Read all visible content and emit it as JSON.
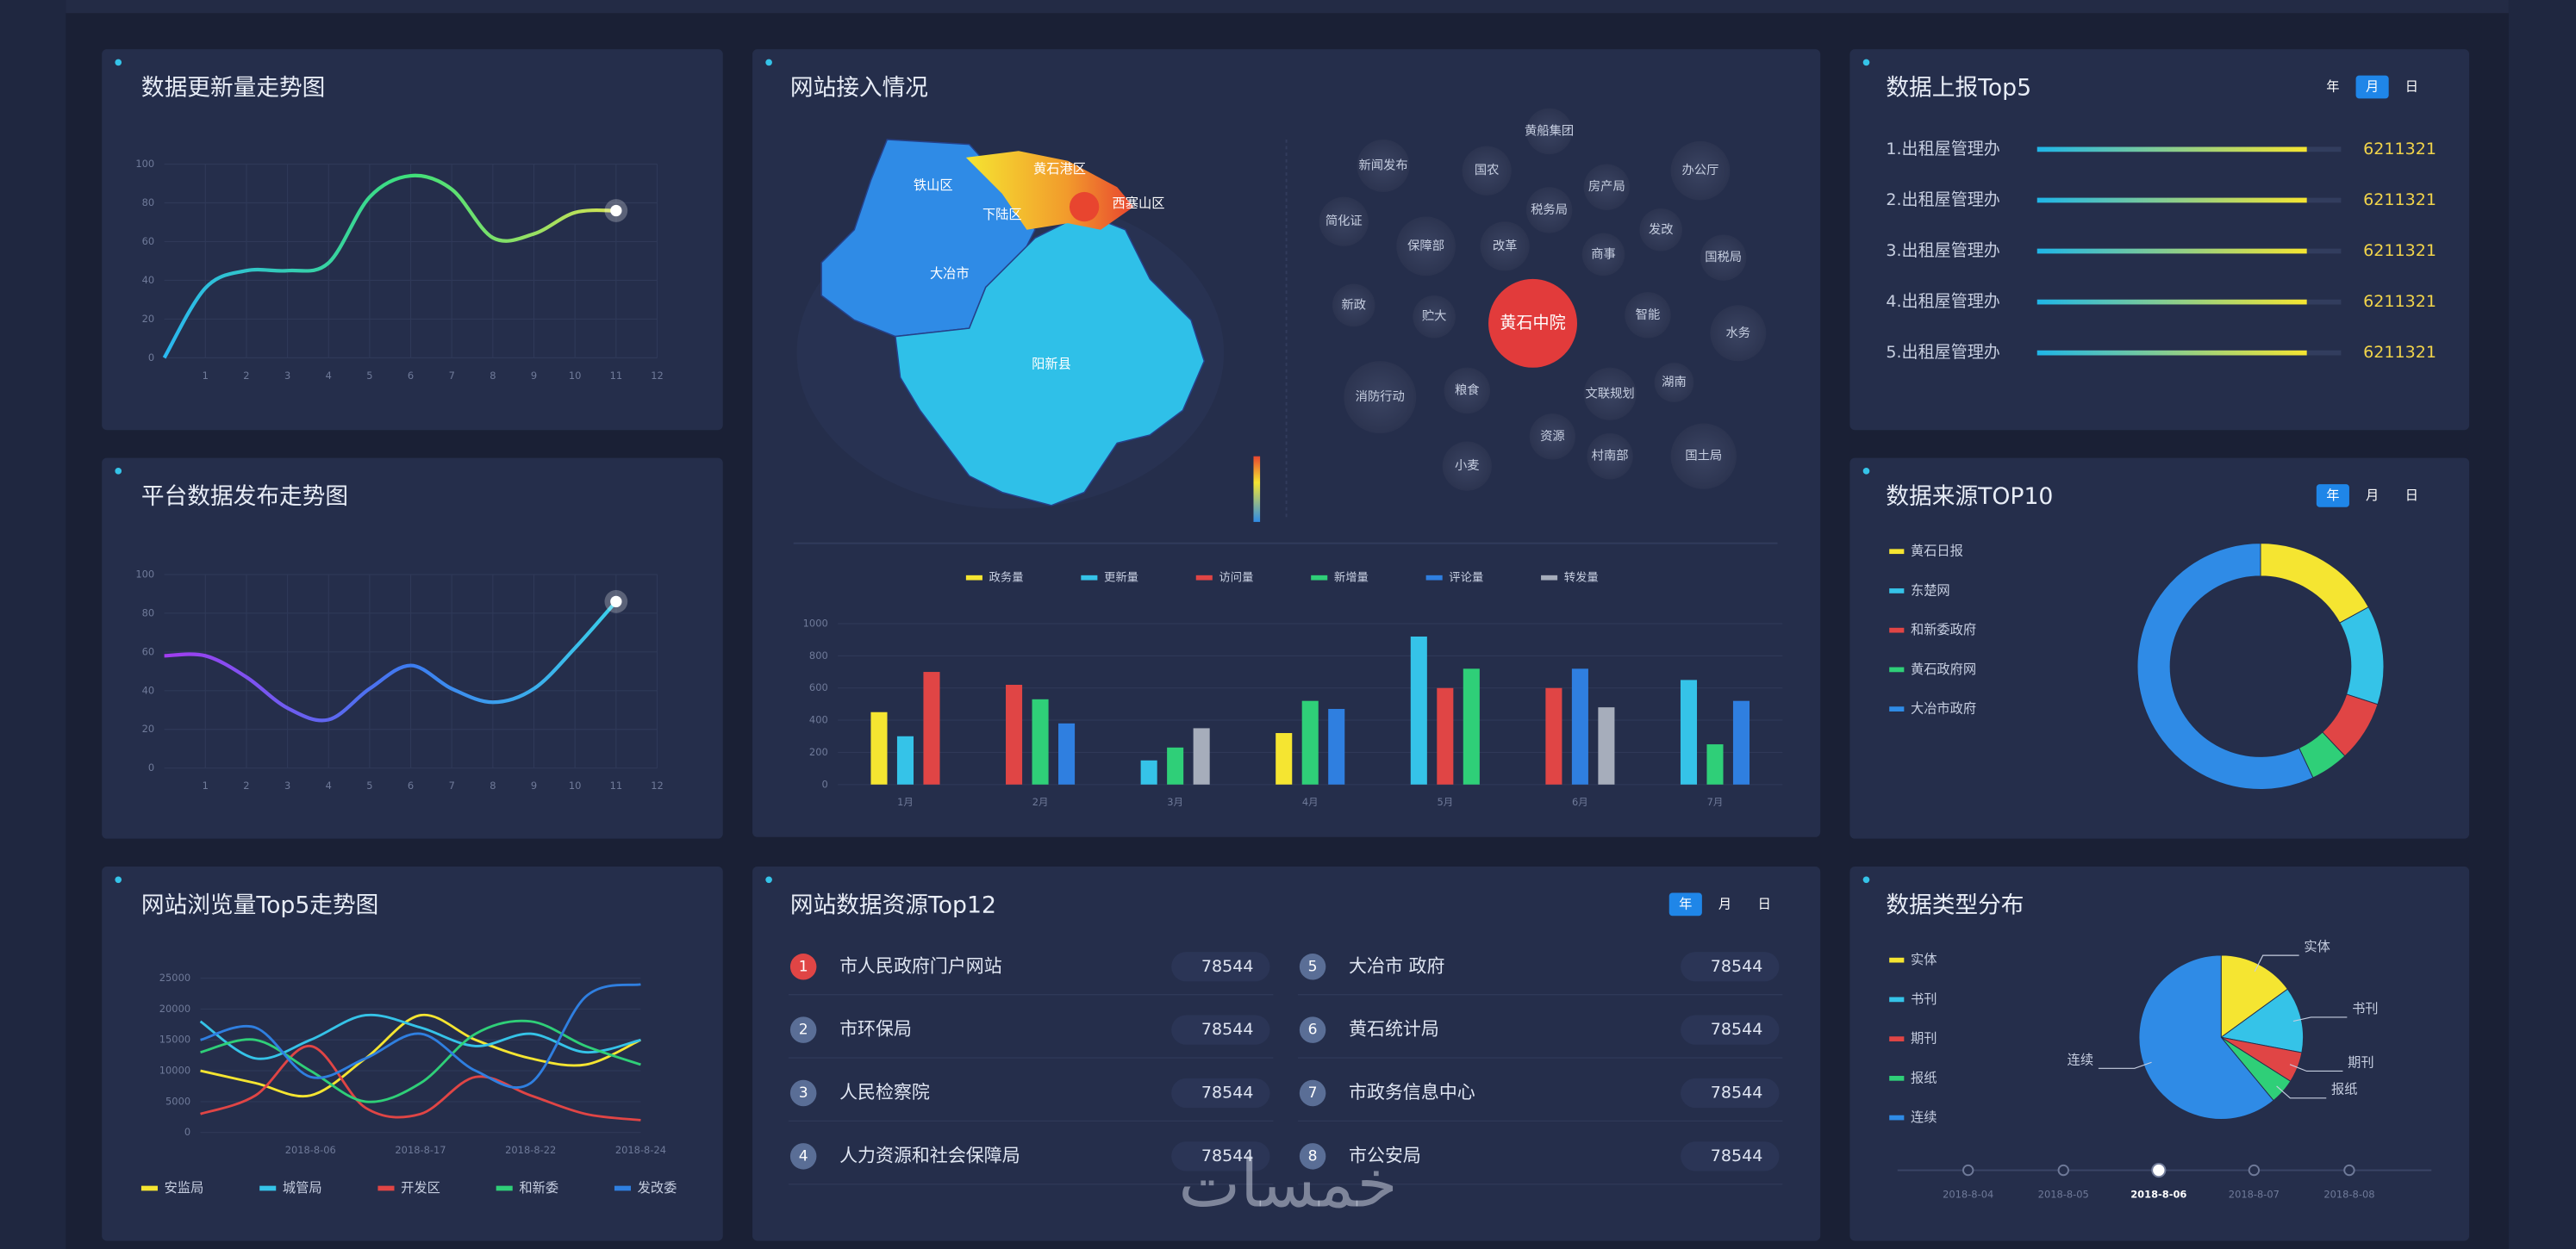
{
  "chart_data": [
    {
      "type": "line",
      "title": "数据更新量走势图",
      "x": [
        0,
        1,
        2,
        3,
        4,
        5,
        6,
        7,
        8,
        9,
        10,
        11
      ],
      "values": [
        0,
        36,
        45,
        45,
        49,
        83,
        94,
        87,
        62,
        64,
        75,
        76
      ],
      "xlim": [
        0,
        12
      ],
      "xticks": [
        1,
        2,
        3,
        4,
        5,
        6,
        7,
        8,
        9,
        10,
        11,
        12
      ],
      "ylim": [
        0,
        100
      ],
      "yticks": [
        0,
        20,
        40,
        60,
        80,
        100
      ],
      "colors": [
        "#2ab7f0",
        "#3ee07a",
        "#f2e14c"
      ],
      "grid": true
    },
    {
      "type": "line",
      "title": "平台数据发布走势图",
      "x": [
        0,
        1,
        2,
        3,
        4,
        5,
        6,
        7,
        8,
        9,
        10,
        11
      ],
      "values": [
        58,
        58,
        47,
        31,
        25,
        41,
        53,
        41,
        34,
        41,
        62,
        86
      ],
      "xlim": [
        0,
        12
      ],
      "xticks": [
        1,
        2,
        3,
        4,
        5,
        6,
        7,
        8,
        9,
        10,
        11,
        12
      ],
      "ylim": [
        0,
        100
      ],
      "yticks": [
        0,
        20,
        40,
        60,
        80,
        100
      ],
      "colors": [
        "#a23cf0",
        "#3c7cf0",
        "#3ae0e8"
      ],
      "grid": true
    },
    {
      "type": "line",
      "title": "网站浏览量Top5走势图",
      "categories": [
        null,
        null,
        "2018-8-06",
        null,
        "2018-8-17",
        null,
        "2018-8-22",
        null,
        "2018-8-24"
      ],
      "ylim": [
        0,
        25000
      ],
      "yticks": [
        0,
        5000,
        10000,
        15000,
        20000,
        25000
      ],
      "grid": true,
      "series": [
        {
          "name": "安监局",
          "color": "#f5e531",
          "values": [
            10000,
            8000,
            6000,
            12000,
            19000,
            15000,
            12000,
            11000,
            15000
          ]
        },
        {
          "name": "城管局",
          "color": "#35c3e8",
          "values": [
            18000,
            12000,
            15000,
            19000,
            17000,
            14000,
            16000,
            13000,
            15000
          ]
        },
        {
          "name": "开发区",
          "color": "#e04545",
          "values": [
            3000,
            6000,
            14000,
            4000,
            3000,
            9000,
            6000,
            3000,
            2000
          ]
        },
        {
          "name": "和新委",
          "color": "#2fcf78",
          "values": [
            13000,
            15000,
            10000,
            5000,
            8000,
            16000,
            18000,
            14000,
            11000
          ]
        },
        {
          "name": "发改委",
          "color": "#2f7fe0",
          "values": [
            15000,
            17000,
            9000,
            12000,
            16000,
            10000,
            8000,
            22000,
            24000
          ]
        }
      ]
    },
    {
      "type": "bar",
      "categories": [
        "1月",
        "2月",
        "3月",
        "4月",
        "5月",
        "6月",
        "7月"
      ],
      "ylim": [
        0,
        1000
      ],
      "yticks": [
        0,
        200,
        400,
        600,
        800,
        1000
      ],
      "grid": true,
      "series": [
        {
          "name": "政务量",
          "color": "#f5e531",
          "values": [
            450,
            null,
            null,
            320,
            null,
            null,
            null
          ]
        },
        {
          "name": "更新量",
          "color": "#35c3e8",
          "values": [
            300,
            null,
            150,
            null,
            920,
            null,
            650
          ]
        },
        {
          "name": "访问量",
          "color": "#e04545",
          "values": [
            700,
            620,
            null,
            null,
            600,
            600,
            null
          ]
        },
        {
          "name": "新增量",
          "color": "#2fcf78",
          "values": [
            null,
            530,
            230,
            520,
            720,
            null,
            250
          ]
        },
        {
          "name": "评论量",
          "color": "#2f7fe0",
          "values": [
            null,
            380,
            null,
            470,
            null,
            720,
            520
          ]
        },
        {
          "name": "转发量",
          "color": "#a6adbb",
          "values": [
            null,
            null,
            350,
            null,
            null,
            480,
            null
          ]
        }
      ]
    },
    {
      "type": "hbar",
      "title": "数据上报Top5",
      "toggles": [
        "年",
        "月",
        "日"
      ],
      "toggle_active": 1,
      "categories": [
        "1.出租屋管理办",
        "2.出租屋管理办",
        "3.出租屋管理办",
        "4.出租屋管理办",
        "5.出租屋管理办"
      ],
      "values": [
        6211321,
        6211321,
        6211321,
        6211321,
        6211321
      ],
      "xlim": [
        0,
        7000000
      ],
      "colors": [
        "#1fb6e8",
        "#f5e531"
      ]
    },
    {
      "type": "donut",
      "title": "数据来源TOP10",
      "toggles": [
        "年",
        "月",
        "日"
      ],
      "toggle_active": 0,
      "categories": [
        "黄石日报",
        "东楚网",
        "和新委政府",
        "黄石政府网",
        "大冶市政府"
      ],
      "values": [
        17,
        13,
        8,
        5,
        57
      ],
      "colors": [
        "#f5e531",
        "#35c3e8",
        "#e04545",
        "#2fcf78",
        "#2f8be6"
      ]
    },
    {
      "type": "pie",
      "title": "数据类型分布",
      "categories": [
        "实体",
        "书刊",
        "期刊",
        "报纸",
        "连续"
      ],
      "values": [
        15,
        13,
        6,
        5,
        61
      ],
      "colors": [
        "#f5e531",
        "#35c3e8",
        "#e04545",
        "#2fcf78",
        "#2f8be6"
      ],
      "timeline": [
        "2018-8-04",
        "2018-8-05",
        "2018-8-06",
        "2018-8-07",
        "2018-8-08"
      ],
      "timeline_active": 2
    }
  ],
  "map": {
    "title": "网站接入情况",
    "regions": [
      "铁山区",
      "黄石港区",
      "西塞山区",
      "下陆区",
      "大冶市",
      "阳新县"
    ],
    "bubbles": [
      "黄船集团",
      "新闻发布",
      "国农",
      "办公厅",
      "房产局",
      "税务局",
      "简化证",
      "保障部",
      "改革",
      "商事",
      "发改",
      "国税局",
      "新政",
      "贮大",
      "黄石中院",
      "智能",
      "水务",
      "消防行动",
      "粮食",
      "文联规划",
      "湖南",
      "资源",
      "村南部",
      "国土局",
      "小麦"
    ]
  },
  "resource_list": {
    "title": "网站数据资源Top12",
    "toggles": [
      "年",
      "月",
      "日"
    ],
    "toggle_active": 0,
    "items": [
      {
        "rank": 1,
        "name": "市人民政府门户网站",
        "value": 78544
      },
      {
        "rank": 2,
        "name": "市环保局",
        "value": 78544
      },
      {
        "rank": 3,
        "name": "人民检察院",
        "value": 78544
      },
      {
        "rank": 4,
        "name": "人力资源和社会保障局",
        "value": 78544
      },
      {
        "rank": 5,
        "name": "大冶市 政府",
        "value": 78544
      },
      {
        "rank": 6,
        "name": "黄石统计局",
        "value": 78544
      },
      {
        "rank": 7,
        "name": "市政务信息中心",
        "value": 78544
      },
      {
        "rank": 8,
        "name": "市公安局",
        "value": 78544
      }
    ]
  },
  "watermark": "خمسات"
}
